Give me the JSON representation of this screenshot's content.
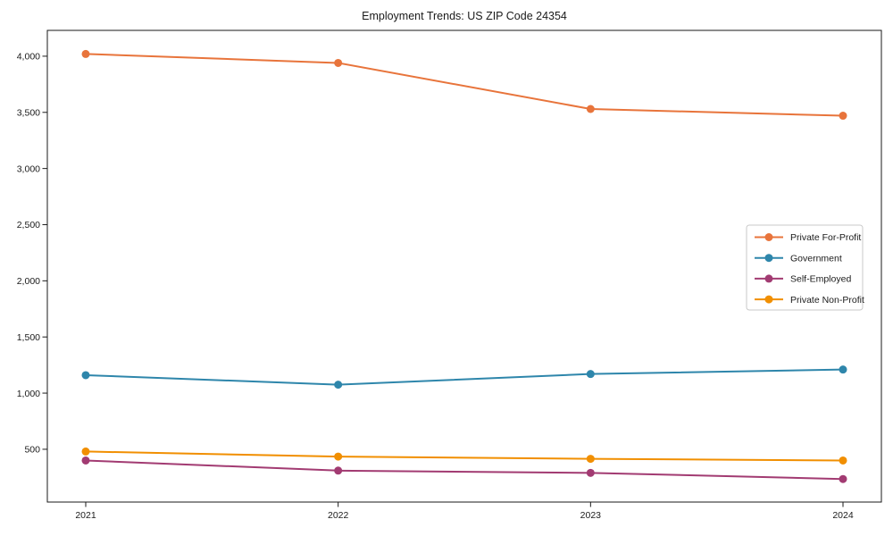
{
  "page": {
    "background_color": "#ffffff",
    "frame_color": "#1a1a1a",
    "legend_border_color": "#c9c9c9"
  },
  "chart_data": {
    "type": "line",
    "title": "Employment Trends: US ZIP Code 24354",
    "xlabel": "",
    "ylabel": "",
    "x": [
      2021,
      2022,
      2023,
      2024
    ],
    "ylim": [
      30,
      4230
    ],
    "yticks": [
      500,
      1000,
      1500,
      2000,
      2500,
      3000,
      3500,
      4000
    ],
    "ytick_labels": [
      "500",
      "1,000",
      "1,500",
      "2,000",
      "2,500",
      "3,000",
      "3,500",
      "4,000"
    ],
    "grid": false,
    "legend_position": "center-right",
    "marker": "circle",
    "series": [
      {
        "name": "Private For-Profit",
        "color": "#e8743b",
        "values": [
          4020,
          3940,
          3530,
          3470
        ]
      },
      {
        "name": "Government",
        "color": "#2e86ab",
        "values": [
          1160,
          1075,
          1170,
          1210
        ]
      },
      {
        "name": "Self-Employed",
        "color": "#a23b72",
        "values": [
          400,
          310,
          290,
          235
        ]
      },
      {
        "name": "Private Non-Profit",
        "color": "#f18f01",
        "values": [
          480,
          435,
          415,
          400
        ]
      }
    ]
  }
}
